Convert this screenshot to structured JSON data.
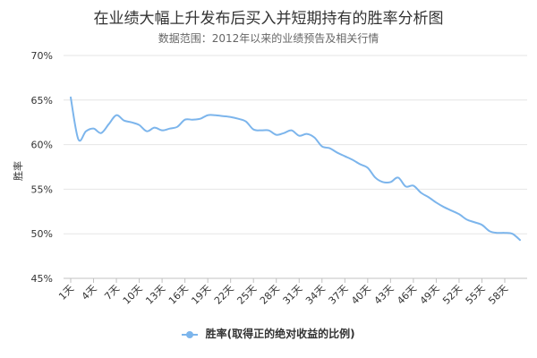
{
  "chart_data": {
    "type": "line",
    "title": "在业绩大幅上升发布后买入并短期持有的胜率分析图",
    "subtitle": "数据范围：2012年以来的业绩预告及相关行情",
    "ylabel": "胜率",
    "xlabel": "",
    "ylim": [
      45,
      70
    ],
    "yticks": [
      45,
      50,
      55,
      60,
      65,
      70
    ],
    "ytick_labels": [
      "45%",
      "50%",
      "55%",
      "60%",
      "65%",
      "70%"
    ],
    "grid": true,
    "legend_position": "bottom",
    "x_tick_labels": [
      "1天",
      "4天",
      "7天",
      "10天",
      "13天",
      "16天",
      "19天",
      "22天",
      "25天",
      "28天",
      "31天",
      "34天",
      "37天",
      "40天",
      "43天",
      "46天",
      "49天",
      "52天",
      "55天",
      "58天"
    ],
    "x": [
      1,
      2,
      3,
      4,
      5,
      6,
      7,
      8,
      9,
      10,
      11,
      12,
      13,
      14,
      15,
      16,
      17,
      18,
      19,
      20,
      21,
      22,
      23,
      24,
      25,
      26,
      27,
      28,
      29,
      30,
      31,
      32,
      33,
      34,
      35,
      36,
      37,
      38,
      39,
      40,
      41,
      42,
      43,
      44,
      45,
      46,
      47,
      48,
      49,
      50,
      51,
      52,
      53,
      54,
      55,
      56,
      57,
      58,
      59,
      60
    ],
    "series": [
      {
        "name": "胜率(取得正的绝对收益的比例)",
        "color": "#7cb5ec",
        "values": [
          65.3,
          60.6,
          61.5,
          61.8,
          61.3,
          62.3,
          63.3,
          62.7,
          62.5,
          62.2,
          61.5,
          61.9,
          61.6,
          61.8,
          62.0,
          62.8,
          62.8,
          62.9,
          63.3,
          63.3,
          63.2,
          63.1,
          62.9,
          62.6,
          61.7,
          61.6,
          61.6,
          61.1,
          61.3,
          61.6,
          61.0,
          61.2,
          60.8,
          59.8,
          59.6,
          59.1,
          58.7,
          58.3,
          57.8,
          57.4,
          56.3,
          55.8,
          55.8,
          56.3,
          55.3,
          55.4,
          54.6,
          54.1,
          53.5,
          53.0,
          52.6,
          52.2,
          51.6,
          51.3,
          51.0,
          50.3,
          50.1,
          50.1,
          50.0,
          49.3
        ]
      }
    ]
  }
}
